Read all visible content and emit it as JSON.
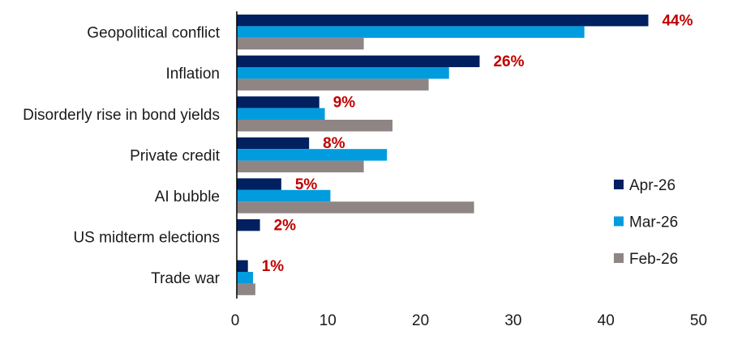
{
  "chart_data": {
    "type": "bar",
    "orientation": "horizontal",
    "title": "",
    "xlabel": "",
    "ylabel": "",
    "xlim": [
      0,
      50
    ],
    "xticks": [
      0,
      10,
      20,
      30,
      40,
      50
    ],
    "grid": false,
    "legend_position": "right",
    "categories": [
      "Geopolitical conflict",
      "Inflation",
      "Disorderly rise in bond yields",
      "Private credit",
      "AI bubble",
      "US midterm elections",
      "Trade war"
    ],
    "series": [
      {
        "name": "Apr-26",
        "color": "#002060",
        "values": [
          44.4,
          26.2,
          8.9,
          7.8,
          4.8,
          2.5,
          1.2
        ]
      },
      {
        "name": "Mar-26",
        "color": "#009CDE",
        "values": [
          37.5,
          22.9,
          9.5,
          16.2,
          10.1,
          0,
          1.75
        ]
      },
      {
        "name": "Feb-26",
        "color": "#8F8584",
        "values": [
          13.7,
          20.7,
          16.8,
          13.7,
          25.6,
          0,
          2.0
        ]
      }
    ],
    "data_labels": {
      "series": "Apr-26",
      "color": "#C00000",
      "labels": [
        "44%",
        "26%",
        "9%",
        "8%",
        "5%",
        "2%",
        "1%"
      ]
    }
  }
}
